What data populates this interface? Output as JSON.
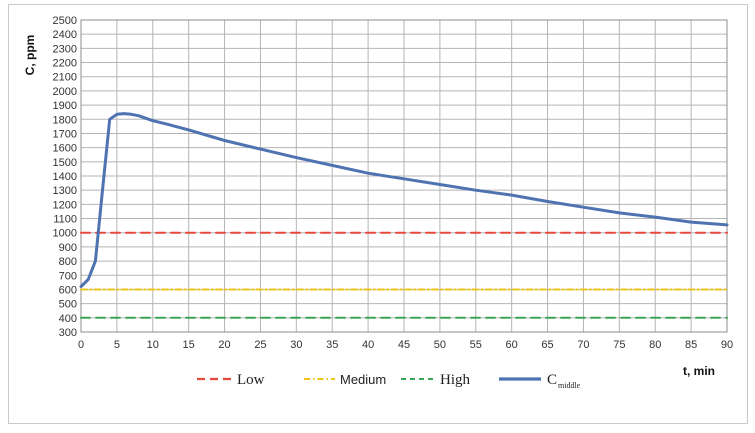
{
  "chart_data": {
    "type": "line",
    "title": "",
    "ylabel": "C, ppm",
    "xlabel": "t, min",
    "xlim": [
      0,
      90
    ],
    "ylim": [
      300,
      2500
    ],
    "x_ticks": [
      0,
      5,
      10,
      15,
      20,
      25,
      30,
      35,
      40,
      45,
      50,
      55,
      60,
      65,
      70,
      75,
      80,
      85,
      90
    ],
    "y_ticks": [
      300,
      400,
      500,
      600,
      700,
      800,
      900,
      1000,
      1100,
      1200,
      1300,
      1400,
      1500,
      1600,
      1700,
      1800,
      1900,
      2000,
      2100,
      2200,
      2300,
      2400,
      2500
    ],
    "grid": true,
    "legend_position": "bottom",
    "series": [
      {
        "name": "Low",
        "style": "dashed",
        "color": "#e8473c",
        "x": [
          0,
          90
        ],
        "y": [
          1000,
          1000
        ]
      },
      {
        "name": "Medium",
        "style": "dash-dot",
        "color": "#f0c419",
        "x": [
          0,
          90
        ],
        "y": [
          600,
          600
        ]
      },
      {
        "name": "High",
        "style": "dashed",
        "color": "#3aa655",
        "x": [
          0,
          90
        ],
        "y": [
          400,
          400
        ]
      },
      {
        "name": "C",
        "name_subscript": "middle",
        "style": "solid",
        "color": "#4f73b1",
        "x": [
          0,
          1,
          2,
          3,
          4,
          5,
          6,
          7,
          8,
          10,
          12,
          15,
          20,
          25,
          30,
          35,
          40,
          45,
          50,
          55,
          60,
          65,
          70,
          75,
          80,
          85,
          90
        ],
        "y": [
          620,
          670,
          800,
          1300,
          1800,
          1835,
          1840,
          1835,
          1825,
          1790,
          1765,
          1725,
          1650,
          1590,
          1530,
          1475,
          1420,
          1380,
          1340,
          1300,
          1265,
          1220,
          1180,
          1140,
          1110,
          1075,
          1055
        ]
      }
    ]
  }
}
